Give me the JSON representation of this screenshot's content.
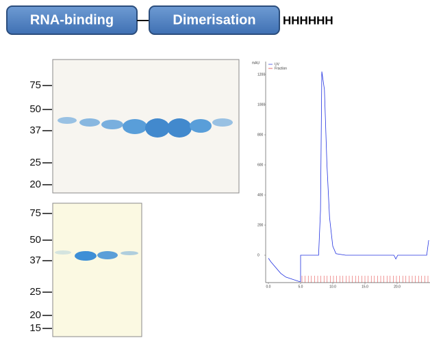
{
  "construct": {
    "domains": [
      "RNA-binding",
      "Dimerisation"
    ],
    "tag": "HHHHHH"
  },
  "gel_top": {
    "markers": [
      75,
      50,
      37,
      25,
      20
    ]
  },
  "gel_bottom": {
    "markers": [
      75,
      50,
      37,
      25,
      20,
      15
    ]
  },
  "chromatogram": {
    "y_label": "mAU",
    "legend": [
      "UV",
      "Fraction"
    ],
    "xlim": [
      0,
      25
    ],
    "ylim": [
      -200,
      1300
    ],
    "xticks": [
      {
        "value": 0,
        "label": "0.0"
      },
      {
        "value": 5,
        "label": "5.0"
      },
      {
        "value": 10,
        "label": "10.0"
      },
      {
        "value": 15,
        "label": "15.0"
      },
      {
        "value": 20,
        "label": "20.0"
      }
    ],
    "yticks": [
      0,
      200,
      400,
      600,
      800,
      1000,
      1200
    ],
    "x": [
      0,
      0.4,
      1.9,
      2.7,
      4.8,
      5.0,
      5.0,
      7.8,
      8.1,
      8.3,
      8.7,
      9.1,
      9.5,
      10.0,
      10.5,
      12,
      19.5,
      19.8,
      20.1,
      24.6,
      24.9
    ],
    "values": [
      -20,
      -45,
      -120,
      -145,
      -175,
      -175,
      0,
      0,
      300,
      1220,
      1100,
      600,
      250,
      60,
      10,
      0,
      0,
      -25,
      0,
      0,
      100
    ]
  }
}
